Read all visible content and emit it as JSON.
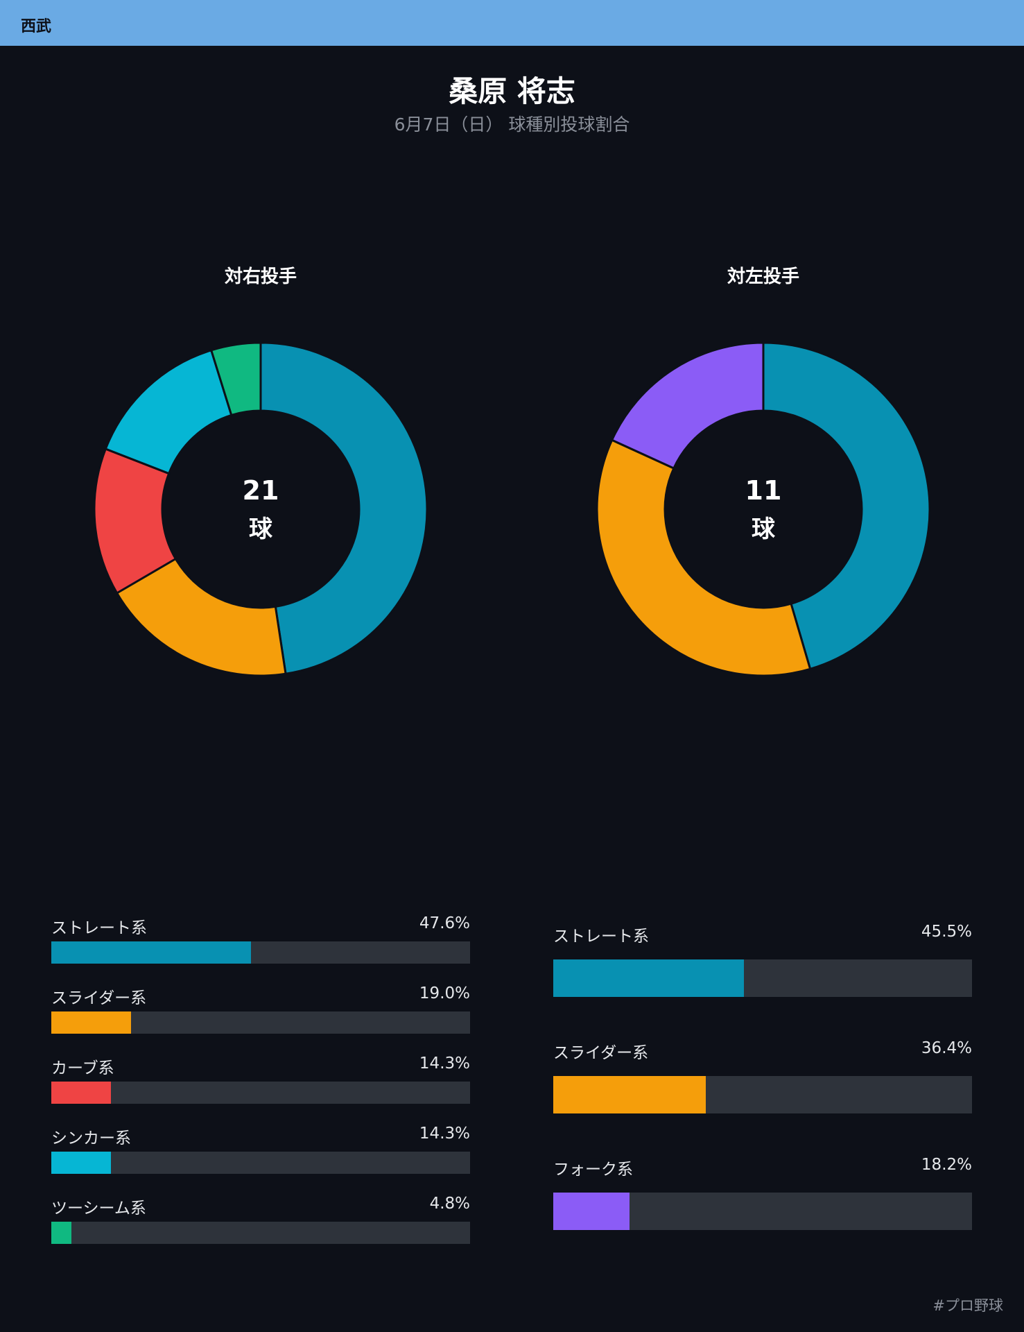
{
  "team": "西武",
  "title": "桑原 将志",
  "subtitle": "6月7日（日） 球種別投球割合",
  "hashtag": "#プロ野球",
  "colors": {
    "team_bar": "#6aaae4",
    "background": "#0d1018",
    "track": "#2e333b",
    "straight": "#0891b2",
    "slider": "#f59e0b",
    "curve": "#ef4444",
    "sinker": "#06b6d4",
    "twoseam": "#10b981",
    "fork": "#8b5cf6"
  },
  "chart_data": [
    {
      "type": "pie",
      "title": "対右投手",
      "center_count": "21",
      "center_unit": "球",
      "slices": [
        {
          "name": "ストレート系",
          "value": 47.6,
          "label": "47.6%",
          "color": "#0891b2"
        },
        {
          "name": "スライダー系",
          "value": 19.0,
          "label": "19.0%",
          "color": "#f59e0b"
        },
        {
          "name": "カーブ系",
          "value": 14.3,
          "label": "14.3%",
          "color": "#ef4444"
        },
        {
          "name": "シンカー系",
          "value": 14.3,
          "label": "14.3%",
          "color": "#06b6d4"
        },
        {
          "name": "ツーシーム系",
          "value": 4.8,
          "label": "4.8%",
          "color": "#10b981"
        }
      ]
    },
    {
      "type": "pie",
      "title": "対左投手",
      "center_count": "11",
      "center_unit": "球",
      "slices": [
        {
          "name": "ストレート系",
          "value": 45.5,
          "label": "45.5%",
          "color": "#0891b2"
        },
        {
          "name": "スライダー系",
          "value": 36.4,
          "label": "36.4%",
          "color": "#f59e0b"
        },
        {
          "name": "フォーク系",
          "value": 18.2,
          "label": "18.2%",
          "color": "#8b5cf6"
        }
      ]
    }
  ]
}
